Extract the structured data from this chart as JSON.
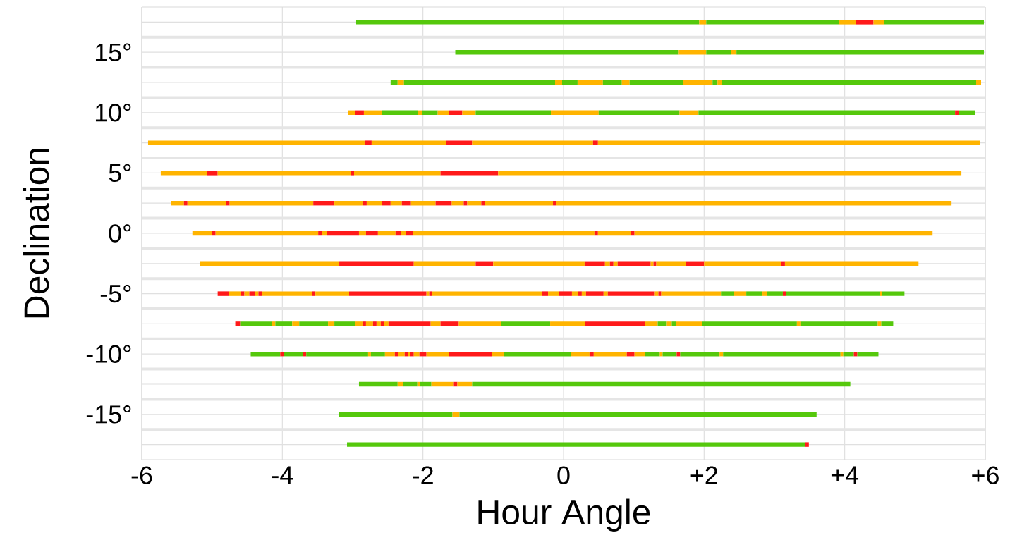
{
  "chart_data": {
    "type": "bar",
    "orientation": "horizontal",
    "xlabel": "Hour Angle",
    "ylabel": "Declination",
    "grid": true,
    "xlim": [
      -6,
      6
    ],
    "xticks": [
      -6,
      -4,
      -2,
      0,
      {
        "value": 2,
        "label": "+2"
      },
      {
        "value": 4,
        "label": "+4"
      },
      {
        "value": 6,
        "label": "+6"
      }
    ],
    "categories": [
      null,
      "15°",
      null,
      "10°",
      null,
      "5°",
      null,
      "0°",
      null,
      "-5°",
      null,
      "-10°",
      null,
      "-15°",
      null
    ],
    "series": [
      {
        "base": [
          -2.95,
          -1.54,
          -2.46,
          -3.07,
          -5.91,
          -5.73,
          -5.58,
          -5.28,
          -5.17,
          -4.92,
          -4.67,
          -4.45,
          -2.91,
          -3.2,
          -3.08
        ],
        "values": [
          4.88,
          3.17,
          0.1,
          0.1,
          3.08,
          0.66,
          0.18,
          0.28,
          1.98,
          0.16,
          0.07,
          0.42,
          0.55,
          1.62,
          6.52
        ],
        "colors": [
          "#55c80c",
          "#55c80c",
          "#55c80c",
          "#ffb400",
          "#ffb400",
          "#ffb400",
          "#ffb400",
          "#ffb400",
          "#ffb400",
          "#ff1a1a",
          "#ff1a1a",
          "#55c80c",
          "#55c80c",
          "#55c80c",
          "#55c80c"
        ]
      },
      {
        "base": [
          1.93,
          1.63,
          -2.36,
          -2.97,
          -2.83,
          -5.07,
          -5.4,
          -5.0,
          -3.19,
          -4.76,
          -4.6,
          -4.03,
          -2.36,
          -1.58,
          3.44
        ],
        "values": [
          0.1,
          0.4,
          0.09,
          0.13,
          0.1,
          0.15,
          0.05,
          0.05,
          1.06,
          0.17,
          0.45,
          0.05,
          0.08,
          0.1,
          0.05
        ],
        "colors": [
          "#ffb400",
          "#ffb400",
          "#ffb400",
          "#ff1a1a",
          "#ff1a1a",
          "#ff1a1a",
          "#ff1a1a",
          "#ff1a1a",
          "#ff1a1a",
          "#ffb400",
          "#55c80c",
          "#ff1a1a",
          "#ffb400",
          "#ffb400",
          "#ff1a1a"
        ]
      },
      {
        "base": [
          2.03,
          2.03,
          -2.27,
          -2.84,
          -2.73,
          -4.92,
          -5.35,
          -4.95,
          -2.13,
          -4.59,
          -4.15,
          -3.98,
          -2.28,
          -1.48,
          null
        ],
        "values": [
          1.89,
          0.35,
          2.15,
          0.26,
          1.06,
          1.89,
          0.55,
          1.46,
          0.88,
          0.05,
          0.05,
          0.27,
          0.2,
          5.08,
          null
        ],
        "colors": [
          "#55c80c",
          "#55c80c",
          "#55c80c",
          "#ffb400",
          "#ffb400",
          "#ffb400",
          "#ffb400",
          "#ffb400",
          "#ffb400",
          "#ff1a1a",
          "#ffb400",
          "#55c80c",
          "#55c80c",
          "#55c80c",
          null
        ]
      },
      {
        "base": [
          3.92,
          2.38,
          -0.12,
          -2.58,
          -1.67,
          -3.03,
          -4.8,
          -3.49,
          -1.25,
          -4.54,
          -4.1,
          -3.71,
          -2.08,
          null,
          null
        ],
        "values": [
          0.24,
          0.08,
          0.1,
          0.51,
          0.37,
          0.05,
          0.05,
          0.05,
          0.25,
          0.07,
          0.24,
          0.05,
          0.04,
          null,
          null
        ],
        "colors": [
          "#ffb400",
          "#ffb400",
          "#ffb400",
          "#55c80c",
          "#ff1a1a",
          "#ff1a1a",
          "#ff1a1a",
          "#ff1a1a",
          "#ff1a1a",
          "#ffb400",
          "#55c80c",
          "#ff1a1a",
          "#ffb400",
          null,
          null
        ]
      },
      {
        "base": [
          4.16,
          2.46,
          -0.02,
          -2.07,
          -1.3,
          -2.98,
          -4.75,
          -3.44,
          -1.0,
          -4.47,
          -3.86,
          -3.66,
          -2.04,
          null,
          null
        ],
        "values": [
          0.25,
          3.52,
          0.22,
          0.06,
          1.72,
          1.23,
          1.19,
          0.07,
          1.3,
          0.08,
          0.1,
          0.88,
          0.16,
          null,
          null
        ],
        "colors": [
          "#ff1a1a",
          "#55c80c",
          "#55c80c",
          "#ffb400",
          "#ffb400",
          "#ffb400",
          "#ffb400",
          "#ffb400",
          "#ffb400",
          "#ff1a1a",
          "#ffb400",
          "#55c80c",
          "#55c80c",
          null,
          null
        ]
      },
      {
        "base": [
          4.41,
          null,
          0.2,
          -2.01,
          0.42,
          -1.75,
          -3.56,
          -3.37,
          0.3,
          -4.39,
          -3.76,
          -2.78,
          -1.88,
          null,
          null
        ],
        "values": [
          0.15,
          null,
          0.36,
          0.22,
          0.07,
          0.82,
          0.3,
          0.46,
          0.29,
          0.05,
          0.41,
          0.04,
          0.31,
          null,
          null
        ],
        "colors": [
          "#ffb400",
          null,
          "#ffb400",
          "#55c80c",
          "#ff1a1a",
          "#ff1a1a",
          "#ff1a1a",
          "#ff1a1a",
          "#ff1a1a",
          "#ffb400",
          "#55c80c",
          "#ffb400",
          "#ffb400",
          null,
          null
        ]
      },
      {
        "base": [
          4.56,
          null,
          0.56,
          -1.79,
          0.49,
          -0.93,
          -3.26,
          -2.91,
          0.59,
          -4.34,
          -3.35,
          -2.74,
          -1.57,
          null,
          null
        ],
        "values": [
          1.42,
          null,
          0.27,
          0.16,
          5.44,
          6.59,
          0.4,
          0.1,
          0.07,
          0.05,
          0.09,
          0.2,
          0.06,
          null,
          null
        ],
        "colors": [
          "#55c80c",
          null,
          "#55c80c",
          "#ffb400",
          "#ffb400",
          "#ffb400",
          "#ffb400",
          "#ffb400",
          "#ffb400",
          "#ff1a1a",
          "#ffb400",
          "#55c80c",
          "#ff1a1a",
          null,
          null
        ]
      },
      {
        "base": [
          null,
          null,
          0.83,
          -1.63,
          null,
          null,
          -2.86,
          -2.81,
          0.66,
          -4.29,
          -3.26,
          -2.54,
          -1.51,
          null,
          null
        ],
        "values": [
          null,
          null,
          0.11,
          0.19,
          null,
          null,
          0.06,
          0.17,
          0.05,
          0.71,
          0.29,
          0.14,
          0.21,
          null,
          null
        ],
        "colors": [
          null,
          null,
          "#ffb400",
          "#ff1a1a",
          null,
          null,
          "#ff1a1a",
          "#ff1a1a",
          "#ff1a1a",
          "#ffb400",
          "#55c80c",
          "#ffb400",
          "#ffb400",
          null,
          null
        ]
      },
      {
        "base": [
          null,
          null,
          0.94,
          -1.44,
          null,
          null,
          -2.8,
          -2.64,
          0.71,
          -3.58,
          -2.97,
          -2.4,
          -1.3,
          null,
          null
        ],
        "values": [
          null,
          null,
          0.76,
          0.19,
          null,
          null,
          0.22,
          0.25,
          0.06,
          0.05,
          0.11,
          0.05,
          5.38,
          null,
          null
        ],
        "colors": [
          null,
          null,
          "#55c80c",
          "#ffb400",
          null,
          null,
          "#ffb400",
          "#ffb400",
          "#ffb400",
          "#ff1a1a",
          "#ffb400",
          "#ff1a1a",
          "#55c80c",
          null,
          null
        ]
      },
      {
        "base": [
          null,
          null,
          1.7,
          -1.25,
          null,
          null,
          -2.58,
          -2.39,
          0.77,
          -3.53,
          -2.86,
          -2.35,
          null,
          null,
          null
        ],
        "values": [
          null,
          null,
          0.42,
          1.07,
          null,
          null,
          0.12,
          0.08,
          0.47,
          0.48,
          0.05,
          0.09,
          null,
          null,
          null
        ],
        "colors": [
          null,
          null,
          "#ffb400",
          "#55c80c",
          null,
          null,
          "#ff1a1a",
          "#ff1a1a",
          "#ff1a1a",
          "#ffb400",
          "#ff1a1a",
          "#ffb400",
          null,
          null,
          null
        ]
      },
      {
        "base": [
          null,
          null,
          2.12,
          -0.18,
          null,
          null,
          -2.46,
          -2.31,
          1.24,
          -3.05,
          -2.81,
          -2.26,
          null,
          null,
          null
        ],
        "values": [
          null,
          null,
          0.07,
          0.68,
          null,
          null,
          0.16,
          0.07,
          0.04,
          1.1,
          0.1,
          0.05,
          null,
          null,
          null
        ],
        "colors": [
          null,
          null,
          "#55c80c",
          "#ffb400",
          null,
          null,
          "#ffb400",
          "#ffb400",
          "#ffb400",
          "#ff1a1a",
          "#ffb400",
          "#ff1a1a",
          null,
          null,
          null
        ]
      },
      {
        "base": [
          null,
          null,
          2.19,
          0.5,
          null,
          null,
          -2.3,
          -2.24,
          1.28,
          -1.95,
          -2.71,
          -2.21,
          null,
          null,
          null
        ],
        "values": [
          null,
          null,
          0.06,
          1.15,
          null,
          null,
          0.13,
          0.1,
          0.04,
          0.04,
          0.05,
          0.03,
          null,
          null,
          null
        ],
        "colors": [
          null,
          null,
          "#ffb400",
          "#55c80c",
          null,
          null,
          "#ff1a1a",
          "#ff1a1a",
          "#ff1a1a",
          "#ffb400",
          "#ff1a1a",
          "#ffb400",
          null,
          null,
          null
        ]
      },
      {
        "base": [
          null,
          null,
          2.25,
          1.65,
          null,
          null,
          -2.17,
          -2.14,
          1.32,
          -1.91,
          -2.66,
          -2.18,
          null,
          null,
          null
        ],
        "values": [
          null,
          null,
          3.62,
          0.27,
          null,
          null,
          0.35,
          2.58,
          0.42,
          0.04,
          0.06,
          0.05,
          null,
          null,
          null
        ],
        "colors": [
          null,
          null,
          "#55c80c",
          "#ffb400",
          null,
          null,
          "#ffb400",
          "#ffb400",
          "#ffb400",
          "#ff1a1a",
          "#ffb400",
          "#ff1a1a",
          null,
          null,
          null
        ]
      },
      {
        "base": [
          null,
          null,
          5.87,
          1.92,
          null,
          null,
          -1.82,
          0.44,
          1.74,
          -1.87,
          -2.6,
          -2.13,
          null,
          null,
          null
        ],
        "values": [
          null,
          null,
          0.07,
          3.65,
          null,
          null,
          0.23,
          0.05,
          0.26,
          1.56,
          0.05,
          0.08,
          null,
          null,
          null
        ],
        "colors": [
          null,
          null,
          "#ffb400",
          "#55c80c",
          null,
          null,
          "#ff1a1a",
          "#ff1a1a",
          "#ff1a1a",
          "#ffb400",
          "#ff1a1a",
          "#ffb400",
          null,
          null,
          null
        ]
      },
      {
        "base": [
          null,
          null,
          null,
          5.57,
          null,
          null,
          -1.59,
          0.49,
          2.0,
          -0.31,
          -2.55,
          -2.05,
          null,
          null,
          null
        ],
        "values": [
          null,
          null,
          null,
          0.05,
          null,
          null,
          0.17,
          0.47,
          1.1,
          0.09,
          0.06,
          0.1,
          null,
          null,
          null
        ],
        "colors": [
          null,
          null,
          null,
          "#ff1a1a",
          null,
          null,
          "#ffb400",
          "#ffb400",
          "#ffb400",
          "#ff1a1a",
          "#ffb400",
          "#ff1a1a",
          null,
          null,
          null
        ]
      },
      {
        "base": [
          null,
          null,
          null,
          5.62,
          null,
          null,
          -1.42,
          0.96,
          3.1,
          -0.22,
          -2.49,
          -1.95,
          null,
          null,
          null
        ],
        "values": [
          null,
          null,
          null,
          0.23,
          null,
          null,
          0.05,
          0.05,
          0.05,
          0.16,
          0.6,
          0.32,
          null,
          null,
          null
        ],
        "colors": [
          null,
          null,
          null,
          "#55c80c",
          null,
          null,
          "#ff1a1a",
          "#ff1a1a",
          "#ff1a1a",
          "#ffb400",
          "#ff1a1a",
          "#ffb400",
          null,
          null,
          null
        ]
      },
      {
        "base": [
          null,
          null,
          null,
          null,
          null,
          null,
          -1.37,
          1.01,
          3.15,
          -0.06,
          -1.89,
          -1.63,
          null,
          null,
          null
        ],
        "values": [
          null,
          null,
          null,
          null,
          null,
          null,
          0.2,
          4.24,
          1.9,
          0.18,
          0.14,
          0.61,
          null,
          null,
          null
        ],
        "colors": [
          null,
          null,
          null,
          null,
          null,
          null,
          "#ffb400",
          "#ffb400",
          "#ffb400",
          "#ff1a1a",
          "#ffb400",
          "#ff1a1a",
          null,
          null,
          null
        ]
      },
      {
        "base": [
          null,
          null,
          null,
          null,
          null,
          null,
          -1.17,
          null,
          null,
          0.12,
          -1.75,
          -1.02,
          null,
          null,
          null
        ],
        "values": [
          null,
          null,
          null,
          null,
          null,
          null,
          0.05,
          null,
          null,
          0.09,
          0.26,
          0.17,
          null,
          null,
          null
        ],
        "colors": [
          null,
          null,
          null,
          null,
          null,
          null,
          "#ff1a1a",
          null,
          null,
          "#ffb400",
          "#ff1a1a",
          "#ffb400",
          null,
          null,
          null
        ]
      },
      {
        "base": [
          null,
          null,
          null,
          null,
          null,
          null,
          -1.12,
          null,
          null,
          0.21,
          -1.49,
          -0.85,
          null,
          null,
          null
        ],
        "values": [
          null,
          null,
          null,
          null,
          null,
          null,
          0.97,
          null,
          null,
          0.05,
          0.6,
          0.96,
          null,
          null,
          null
        ],
        "colors": [
          null,
          null,
          null,
          null,
          null,
          null,
          "#ffb400",
          null,
          null,
          "#ff1a1a",
          "#ffb400",
          "#55c80c",
          null,
          null,
          null
        ]
      },
      {
        "base": [
          null,
          null,
          null,
          null,
          null,
          null,
          -0.15,
          null,
          null,
          0.26,
          -0.89,
          0.11,
          null,
          null,
          null
        ],
        "values": [
          null,
          null,
          null,
          null,
          null,
          null,
          0.05,
          null,
          null,
          0.06,
          0.7,
          0.26,
          null,
          null,
          null
        ],
        "colors": [
          null,
          null,
          null,
          null,
          null,
          null,
          "#ff1a1a",
          null,
          null,
          "#ffb400",
          "#55c80c",
          "#ffb400",
          null,
          null,
          null
        ]
      },
      {
        "base": [
          null,
          null,
          null,
          null,
          null,
          null,
          -0.1,
          null,
          null,
          0.32,
          -0.19,
          0.37,
          null,
          null,
          null
        ],
        "values": [
          null,
          null,
          null,
          null,
          null,
          null,
          5.62,
          null,
          null,
          0.25,
          0.5,
          0.06,
          null,
          null,
          null
        ],
        "colors": [
          null,
          null,
          null,
          null,
          null,
          null,
          "#ffb400",
          null,
          null,
          "#ff1a1a",
          "#ffb400",
          "#ff1a1a",
          null,
          null,
          null
        ]
      },
      {
        "base": [
          null,
          null,
          null,
          null,
          null,
          null,
          null,
          null,
          null,
          0.57,
          0.31,
          0.43,
          null,
          null,
          null
        ],
        "values": [
          null,
          null,
          null,
          null,
          null,
          null,
          null,
          null,
          null,
          0.06,
          0.85,
          0.47,
          null,
          null,
          null
        ],
        "colors": [
          null,
          null,
          null,
          null,
          null,
          null,
          null,
          null,
          null,
          "#ffb400",
          "#ff1a1a",
          "#ffb400",
          null,
          null,
          null
        ]
      },
      {
        "base": [
          null,
          null,
          null,
          null,
          null,
          null,
          null,
          null,
          null,
          0.63,
          1.16,
          0.9,
          null,
          null,
          null
        ],
        "values": [
          null,
          null,
          null,
          null,
          null,
          null,
          null,
          null,
          null,
          0.66,
          0.18,
          0.11,
          null,
          null,
          null
        ],
        "colors": [
          null,
          null,
          null,
          null,
          null,
          null,
          null,
          null,
          null,
          "#ff1a1a",
          "#ffb400",
          "#ff1a1a",
          null,
          null,
          null
        ]
      },
      {
        "base": [
          null,
          null,
          null,
          null,
          null,
          null,
          null,
          null,
          null,
          1.29,
          1.34,
          1.01,
          null,
          null,
          null
        ],
        "values": [
          null,
          null,
          null,
          null,
          null,
          null,
          null,
          null,
          null,
          0.06,
          0.12,
          0.15,
          null,
          null,
          null
        ],
        "colors": [
          null,
          null,
          null,
          null,
          null,
          null,
          null,
          null,
          null,
          "#ffb400",
          "#55c80c",
          "#ffb400",
          null,
          null,
          null
        ]
      },
      {
        "base": [
          null,
          null,
          null,
          null,
          null,
          null,
          null,
          null,
          null,
          1.35,
          1.46,
          1.16,
          null,
          null,
          null
        ],
        "values": [
          null,
          null,
          null,
          null,
          null,
          null,
          null,
          null,
          null,
          0.04,
          0.08,
          0.21,
          null,
          null,
          null
        ],
        "colors": [
          null,
          null,
          null,
          null,
          null,
          null,
          null,
          null,
          null,
          "#ff1a1a",
          "#ffb400",
          "#55c80c",
          null,
          null,
          null
        ]
      },
      {
        "base": [
          null,
          null,
          null,
          null,
          null,
          null,
          null,
          null,
          null,
          1.39,
          1.54,
          1.37,
          null,
          null,
          null
        ],
        "values": [
          null,
          null,
          null,
          null,
          null,
          null,
          null,
          null,
          null,
          0.85,
          0.06,
          0.04,
          null,
          null,
          null
        ],
        "colors": [
          null,
          null,
          null,
          null,
          null,
          null,
          null,
          null,
          null,
          "#ffb400",
          "#55c80c",
          "#ffb400",
          null,
          null,
          null
        ]
      },
      {
        "base": [
          null,
          null,
          null,
          null,
          null,
          null,
          null,
          null,
          null,
          2.24,
          1.6,
          1.41,
          null,
          null,
          null
        ],
        "values": [
          null,
          null,
          null,
          null,
          null,
          null,
          null,
          null,
          null,
          0.18,
          0.37,
          0.2,
          null,
          null,
          null
        ],
        "colors": [
          null,
          null,
          null,
          null,
          null,
          null,
          null,
          null,
          null,
          "#55c80c",
          "#ffb400",
          "#55c80c",
          null,
          null,
          null
        ]
      },
      {
        "base": [
          null,
          null,
          null,
          null,
          null,
          null,
          null,
          null,
          null,
          2.42,
          1.97,
          1.61,
          null,
          null,
          null
        ],
        "values": [
          null,
          null,
          null,
          null,
          null,
          null,
          null,
          null,
          null,
          0.18,
          1.35,
          0.05,
          null,
          null,
          null
        ],
        "colors": [
          null,
          null,
          null,
          null,
          null,
          null,
          null,
          null,
          null,
          "#ffb400",
          "#55c80c",
          "#ff1a1a",
          null,
          null,
          null
        ]
      },
      {
        "base": [
          null,
          null,
          null,
          null,
          null,
          null,
          null,
          null,
          null,
          2.6,
          3.32,
          1.66,
          null,
          null,
          null
        ],
        "values": [
          null,
          null,
          null,
          null,
          null,
          null,
          null,
          null,
          null,
          0.23,
          0.05,
          0.56,
          null,
          null,
          null
        ],
        "colors": [
          null,
          null,
          null,
          null,
          null,
          null,
          null,
          null,
          null,
          "#55c80c",
          "#ffb400",
          "#55c80c",
          null,
          null,
          null
        ]
      },
      {
        "base": [
          null,
          null,
          null,
          null,
          null,
          null,
          null,
          null,
          null,
          2.83,
          3.37,
          2.22,
          null,
          null,
          null
        ],
        "values": [
          null,
          null,
          null,
          null,
          null,
          null,
          null,
          null,
          null,
          0.07,
          1.1,
          0.05,
          null,
          null,
          null
        ],
        "colors": [
          null,
          null,
          null,
          null,
          null,
          null,
          null,
          null,
          null,
          "#ffb400",
          "#55c80c",
          "#ffb400",
          null,
          null,
          null
        ]
      },
      {
        "base": [
          null,
          null,
          null,
          null,
          null,
          null,
          null,
          null,
          null,
          2.9,
          4.47,
          2.27,
          null,
          null,
          null
        ],
        "values": [
          null,
          null,
          null,
          null,
          null,
          null,
          null,
          null,
          null,
          0.22,
          0.05,
          1.67,
          null,
          null,
          null
        ],
        "colors": [
          null,
          null,
          null,
          null,
          null,
          null,
          null,
          null,
          null,
          "#55c80c",
          "#ffb400",
          "#55c80c",
          null,
          null,
          null
        ]
      },
      {
        "base": [
          null,
          null,
          null,
          null,
          null,
          null,
          null,
          null,
          null,
          3.12,
          4.52,
          3.94,
          null,
          null,
          null
        ],
        "values": [
          null,
          null,
          null,
          null,
          null,
          null,
          null,
          null,
          null,
          0.05,
          0.17,
          0.04,
          null,
          null,
          null
        ],
        "colors": [
          null,
          null,
          null,
          null,
          null,
          null,
          null,
          null,
          null,
          "#ff1a1a",
          "#55c80c",
          "#ffb400",
          null,
          null,
          null
        ]
      },
      {
        "base": [
          null,
          null,
          null,
          null,
          null,
          null,
          null,
          null,
          null,
          3.17,
          null,
          3.98,
          null,
          null,
          null
        ],
        "values": [
          null,
          null,
          null,
          null,
          null,
          null,
          null,
          null,
          null,
          1.33,
          null,
          0.15,
          null,
          null,
          null
        ],
        "colors": [
          null,
          null,
          null,
          null,
          null,
          null,
          null,
          null,
          null,
          "#55c80c",
          null,
          "#55c80c",
          null,
          null,
          null
        ]
      },
      {
        "base": [
          null,
          null,
          null,
          null,
          null,
          null,
          null,
          null,
          null,
          4.5,
          null,
          4.13,
          null,
          null,
          null
        ],
        "values": [
          null,
          null,
          null,
          null,
          null,
          null,
          null,
          null,
          null,
          0.03,
          null,
          0.05,
          null,
          null,
          null
        ],
        "colors": [
          null,
          null,
          null,
          null,
          null,
          null,
          null,
          null,
          null,
          "#ffb400",
          null,
          "#ff1a1a",
          null,
          null,
          null
        ]
      },
      {
        "base": [
          null,
          null,
          null,
          null,
          null,
          null,
          null,
          null,
          null,
          4.53,
          null,
          4.18,
          null,
          null,
          null
        ],
        "values": [
          null,
          null,
          null,
          null,
          null,
          null,
          null,
          null,
          null,
          0.32,
          null,
          0.3,
          null,
          null,
          null
        ],
        "colors": [
          null,
          null,
          null,
          null,
          null,
          null,
          null,
          null,
          null,
          "#55c80c",
          null,
          "#55c80c",
          null,
          null,
          null
        ]
      }
    ]
  }
}
